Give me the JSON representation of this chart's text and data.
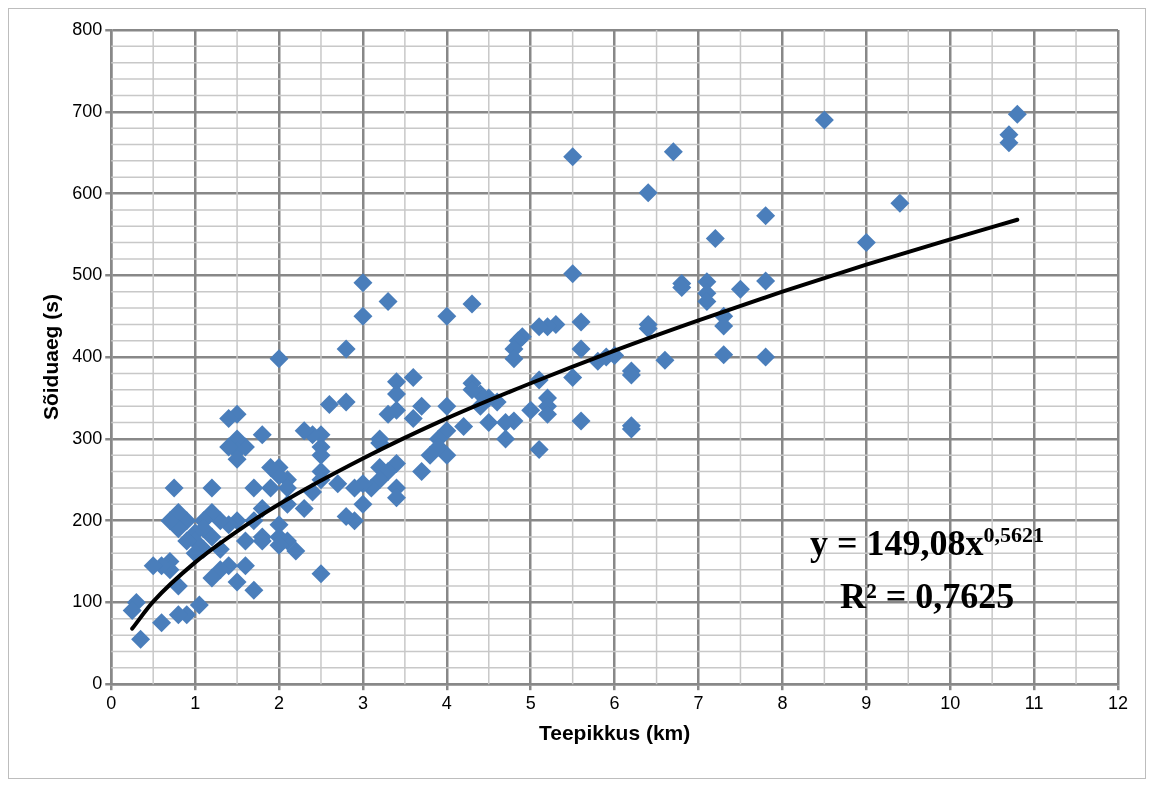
{
  "chart_data": {
    "type": "scatter",
    "xlabel": "Teepikkus (km)",
    "ylabel": "Sõiduaeg (s)",
    "xlim": [
      0,
      12
    ],
    "xticks": [
      0,
      1,
      2,
      3,
      4,
      5,
      6,
      7,
      8,
      9,
      10,
      11,
      12
    ],
    "ylim": [
      0,
      800
    ],
    "yticks": [
      0,
      100,
      200,
      300,
      400,
      500,
      600,
      700,
      800
    ],
    "grid": true,
    "legend": false,
    "marker": "diamond",
    "annotations": [
      "y = 149,08x$^{0,5621}$",
      "R² = 0,7625"
    ],
    "series": [
      {
        "color": "#4a7ebb",
        "x": [
          10.8,
          10.7,
          10.7,
          8.5,
          9.4,
          9.0,
          7.8,
          7.8,
          7.8,
          7.2,
          7.1,
          7.1,
          7.1,
          7.3,
          7.3,
          7.3,
          7.5,
          6.8,
          6.8,
          6.7,
          6.4,
          6.4,
          6.4,
          6.6,
          6.2,
          6.2,
          6.2,
          6.2,
          5.8,
          5.9,
          6.0,
          5.6,
          5.6,
          5.6,
          5.5,
          5.5,
          5.5,
          5.3,
          5.2,
          5.2,
          5.2,
          5.2,
          5.1,
          5.1,
          5.1,
          5.0,
          4.9,
          4.85,
          4.8,
          4.8,
          4.8,
          4.7,
          4.7,
          4.6,
          4.5,
          4.5,
          4.4,
          4.4,
          4.3,
          4.3,
          4.3,
          4.2,
          4.0,
          4.0,
          4.0,
          4.0,
          3.9,
          3.9,
          3.8,
          3.7,
          3.7,
          3.6,
          3.6,
          3.4,
          3.4,
          3.4,
          3.4,
          3.4,
          3.4,
          3.3,
          3.3,
          3.3,
          3.2,
          3.2,
          3.2,
          3.2,
          3.1,
          3.0,
          3.0,
          3.0,
          3.0,
          2.9,
          2.9,
          2.8,
          2.8,
          2.8,
          2.7,
          2.6,
          2.5,
          2.5,
          2.5,
          2.5,
          2.5,
          2.5,
          2.4,
          2.4,
          2.3,
          2.3,
          2.2,
          2.1,
          2.1,
          2.1,
          2.1,
          2.0,
          2.0,
          2.0,
          2.0,
          2.0,
          2.0,
          1.9,
          1.9,
          1.8,
          1.8,
          1.8,
          1.8,
          1.7,
          1.7,
          1.7,
          1.6,
          1.6,
          1.6,
          1.5,
          1.5,
          1.5,
          1.5,
          1.5,
          1.5,
          1.4,
          1.4,
          1.4,
          1.4,
          1.3,
          1.3,
          1.3,
          1.2,
          1.2,
          1.2,
          1.2,
          1.1,
          1.1,
          1.1,
          1.0,
          1.0,
          1.0,
          1.05,
          0.9,
          0.9,
          0.9,
          0.8,
          0.8,
          0.8,
          0.8,
          0.75,
          0.7,
          0.7,
          0.7,
          0.6,
          0.6,
          0.5,
          0.3,
          0.25,
          0.35
        ],
        "values": [
          697,
          672,
          662,
          690,
          588,
          540,
          573,
          493,
          400,
          545,
          492,
          478,
          468,
          450,
          438,
          403,
          483,
          490,
          485,
          651,
          601,
          440,
          435,
          396,
          383,
          378,
          316,
          312,
          395,
          400,
          402,
          443,
          410,
          322,
          645,
          502,
          375,
          440,
          437,
          350,
          340,
          330,
          437,
          372,
          287,
          335,
          425,
          420,
          410,
          398,
          322,
          320,
          300,
          345,
          350,
          320,
          355,
          340,
          465,
          368,
          360,
          315,
          450,
          340,
          310,
          280,
          300,
          290,
          280,
          260,
          340,
          375,
          325,
          370,
          355,
          335,
          270,
          240,
          228,
          468,
          330,
          260,
          300,
          295,
          265,
          250,
          240,
          491,
          450,
          245,
          220,
          200,
          240,
          410,
          345,
          205,
          245,
          342,
          305,
          290,
          280,
          260,
          250,
          135,
          305,
          235,
          310,
          215,
          163,
          250,
          240,
          220,
          175,
          398,
          265,
          255,
          195,
          180,
          170,
          265,
          240,
          305,
          215,
          180,
          175,
          240,
          200,
          115,
          290,
          175,
          145,
          330,
          300,
          285,
          275,
          200,
          125,
          325,
          290,
          195,
          145,
          200,
          165,
          140,
          240,
          210,
          180,
          130,
          200,
          190,
          165,
          185,
          175,
          160,
          97,
          200,
          175,
          85,
          210,
          190,
          120,
          85,
          240,
          200,
          150,
          140,
          145,
          75,
          145,
          100,
          90,
          55
        ]
      },
      {
        "type": "line",
        "color": "#000000",
        "marker": "none",
        "line_style": "solid",
        "x": [
          0.25,
          0.5,
          1,
          1.5,
          2,
          3,
          4,
          5,
          6,
          7,
          8,
          9,
          10,
          10.8
        ],
        "values": [
          68,
          101,
          149,
          187,
          220,
          276,
          325,
          368,
          408,
          445,
          480,
          513,
          544,
          568
        ]
      }
    ]
  }
}
